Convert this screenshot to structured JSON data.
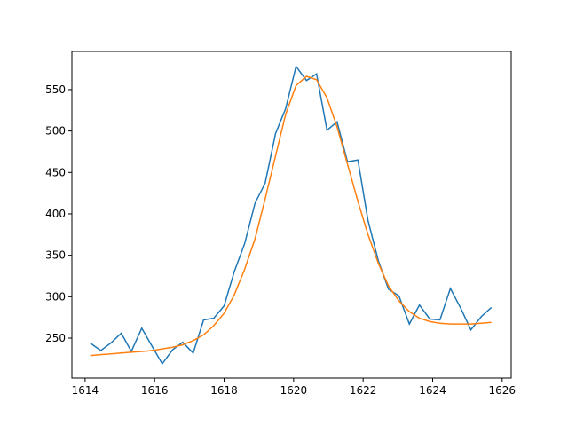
{
  "chart_data": {
    "type": "line",
    "x": [
      1614.15,
      1614.45,
      1614.74,
      1615.04,
      1615.33,
      1615.63,
      1615.93,
      1616.22,
      1616.52,
      1616.81,
      1617.11,
      1617.41,
      1617.7,
      1618.0,
      1618.29,
      1618.59,
      1618.89,
      1619.18,
      1619.48,
      1619.77,
      1620.07,
      1620.37,
      1620.66,
      1620.96,
      1621.25,
      1621.55,
      1621.85,
      1622.14,
      1622.44,
      1622.73,
      1623.03,
      1623.33,
      1623.62,
      1623.92,
      1624.21,
      1624.51,
      1624.81,
      1625.1,
      1625.4,
      1625.69
    ],
    "series": [
      {
        "color": "#1f77b4",
        "values": [
          244,
          235,
          244,
          256,
          234,
          262,
          240,
          219,
          236,
          245,
          232,
          272,
          274,
          289,
          330,
          364,
          413,
          437,
          497,
          527,
          578,
          561,
          569,
          501,
          511,
          463,
          465,
          392,
          343,
          309,
          301,
          267,
          290,
          273,
          272,
          310,
          286,
          260,
          276,
          287
        ]
      },
      {
        "color": "#ff7f0e",
        "values": [
          229,
          230,
          231,
          232,
          233,
          234,
          235,
          237,
          239,
          242,
          247,
          254,
          265,
          280,
          302,
          333,
          370,
          418,
          470,
          520,
          555,
          566,
          562,
          540,
          505,
          460,
          415,
          375,
          340,
          313,
          295,
          282,
          274,
          270,
          268,
          267,
          267,
          267,
          268,
          269
        ]
      }
    ],
    "xlim": [
      1613.62,
      1626.26
    ],
    "xticks": [
      1614,
      1616,
      1618,
      1620,
      1622,
      1624,
      1626
    ],
    "ylim": [
      201.8,
      596
    ],
    "yticks": [
      250,
      300,
      350,
      400,
      450,
      500,
      550
    ]
  }
}
